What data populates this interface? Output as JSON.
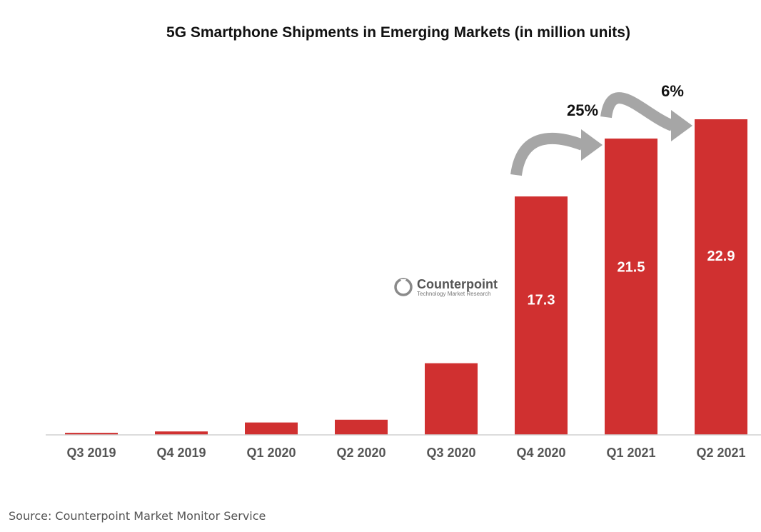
{
  "chart_data": {
    "type": "bar",
    "title": "5G Smartphone Shipments in Emerging Markets (in million units)",
    "categories": [
      "Q3 2019",
      "Q4 2019",
      "Q1 2020",
      "Q2 2020",
      "Q3 2020",
      "Q4 2020",
      "Q1 2021",
      "Q2 2021"
    ],
    "values": [
      0.15,
      0.25,
      0.9,
      1.1,
      5.2,
      17.3,
      21.5,
      22.9
    ],
    "data_labels": [
      "",
      "",
      "",
      "",
      "",
      "17.3",
      "21.5",
      "22.9"
    ],
    "ylim": [
      0,
      25
    ],
    "grid": false,
    "bar_color": "#d03030",
    "annotations": [
      {
        "text": "25%",
        "from": "Q4 2020",
        "to": "Q1 2021"
      },
      {
        "text": "6%",
        "from": "Q1 2021",
        "to": "Q2 2021"
      }
    ],
    "arrow_color": "#a6a6a6"
  },
  "watermark": {
    "name": "Counterpoint",
    "tagline": "Technology Market Research"
  },
  "source": "Source: Counterpoint Market Monitor Service"
}
